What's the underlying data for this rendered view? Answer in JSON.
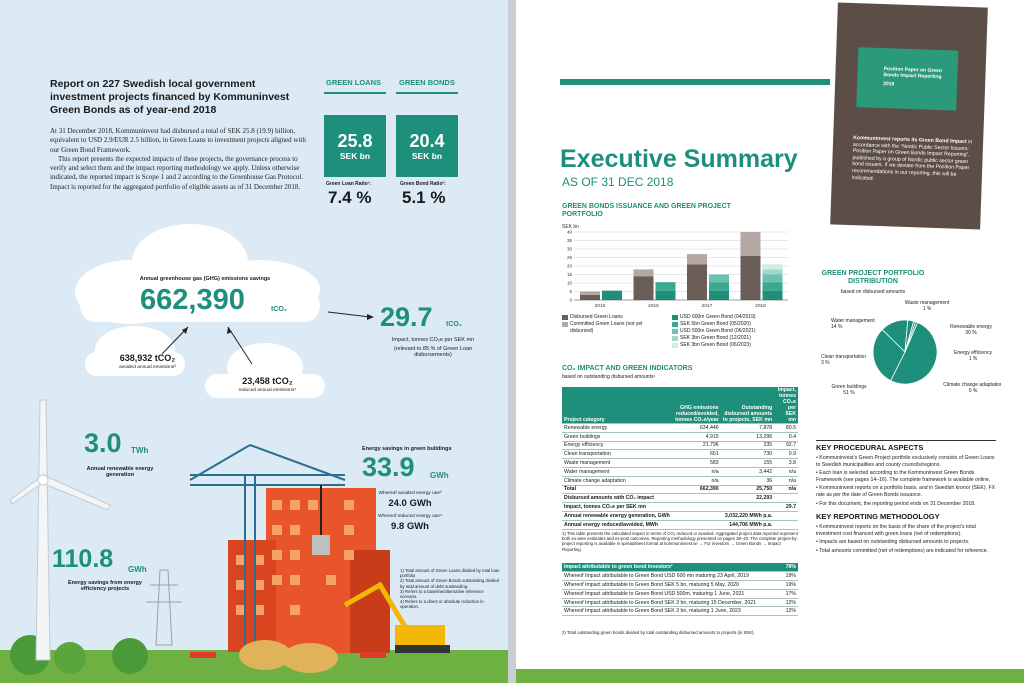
{
  "left": {
    "title": "Report on 227 Swedish local government investment projects financed by Kommuninvest Green Bonds as of year-end 2018",
    "intro_p1": "At 31 December 2018, Kommuninvest had disbursed a total of SEK 25.8 (19.9) billion, equivalent to USD 2.9/EUR 2.5 billion, in Green Loans to investment projects aligned with our Green Bond Framework.",
    "intro_p2": "This report presents the expected impacts of these projects, the governance process to verify and select them and the impact reporting methodology we apply. Unless otherwise indicated, the reported impact is Scope 1 and 2 according to the Greenhouse Gas Protocol. Impact is reported for the aggregated portfolio of eligible assets as of 31 December 2018.",
    "green_loans": {
      "heading": "GREEN LOANS",
      "value": "25.8",
      "unit": "SEK bn",
      "ratio_label": "Green Loan Ratio¹:",
      "ratio": "7.4 %"
    },
    "green_bonds": {
      "heading": "GREEN BONDS",
      "value": "20.4",
      "unit": "SEK bn",
      "ratio_label": "Green Bond Ratio²:",
      "ratio": "5.1 %"
    },
    "ghg": {
      "label": "Annual greenhouse gas (GHG) emissions savings",
      "value": "662,390",
      "unit": "tCO₂"
    },
    "avoided": {
      "value": "638,932 tCO₂",
      "label": "avoided annual emissions³"
    },
    "reduced": {
      "value": "23,458 tCO₂",
      "label": "reduced annual emissions⁴"
    },
    "impact": {
      "value": "29.7",
      "unit": "tCO₂",
      "label": "Impact, tonnes CO₂e per SEK mn",
      "note": "(relevant to 85 % of Green Loan disbursements)"
    },
    "renewable": {
      "value": "3.0",
      "unit": "TWh",
      "label": "Annual renewable energy generation"
    },
    "efficiency": {
      "value": "110.8",
      "unit": "GWh",
      "label": "Energy savings from energy efficiency projects"
    },
    "buildings": {
      "heading": "Energy savings in green buildings",
      "value": "33.9",
      "unit": "GWh",
      "avoided_label": "Whereof avoided energy use³",
      "avoided_value": "24.0 GWh",
      "reduced_label": "Whereof reduced energy use⁴",
      "reduced_value": "9.8 GWh"
    },
    "footnotes": [
      "1) Total amount of Green Loans divided by total loan portfolio",
      "2) Total amount of Green Bonds outstanding divided by total amount of debt outstanding.",
      "3) Refers to a baseline/alternative reference scenario.",
      "4) Refers to a direct or absolute reduction in operation."
    ]
  },
  "right": {
    "title": "Executive Summary",
    "subtitle": "AS OF 31 DEC 2018",
    "booklet": {
      "title": "Position Paper on Green Bonds Impact Reporting",
      "year": "2019",
      "text_bold": "Kommuninvest reports its Green Bond Impact",
      "text": " in accordance with the “Nordic Public Sector Issuers: Position Paper on Green Bonds Impact Reporting”, published by a group of Nordic public sector green bond issuers. If we deviate from the Position Paper recommendations in our reporting, this will be indicated."
    },
    "issuance_heading": "GREEN BONDS ISSUANCE AND GREEN PROJECT PORTFOLIO",
    "portfolio_heading": "GREEN PROJECT PORTFOLIO DISTRIBUTION",
    "portfolio_sub": "based on disbursed amounts",
    "co2_heading": "CO₂ IMPACT AND GREEN INDICATORS",
    "co2_sub": "based on outstanding disbursed amounts¹",
    "table_headers": [
      "Project category",
      "GHG emissions reduced/avoided, tonnes CO₂e/year",
      "Outstanding disbursed amounts to projects, SEK mn",
      "Impact, tonnes CO₂e per SEK mn"
    ],
    "table_rows": [
      [
        "Renewable energy",
        "634,446",
        "7,878",
        "80.5"
      ],
      [
        "Green buildings",
        "4,915",
        "13,296",
        "0.4"
      ],
      [
        "Energy efficiency",
        "21,796",
        "235",
        "92.7"
      ],
      [
        "Clean transportation",
        "651",
        "730",
        "0.9"
      ],
      [
        "Waste management",
        "583",
        "155",
        "3.8"
      ],
      [
        "Water management",
        "n/a",
        "3,442",
        "n/a"
      ],
      [
        "Climate change adaptation",
        "n/a",
        "36",
        "n/a"
      ],
      [
        "Total",
        "662,390",
        "25,750",
        "n/a"
      ]
    ],
    "table_summary": [
      [
        "Disbursed amounts with CO₂ impact",
        "",
        "22,293",
        ""
      ],
      [
        "Impact, tonnes CO₂e per SEK mn",
        "",
        "",
        "29.7"
      ],
      [
        "Annual renewable energy generation, GWh",
        "",
        "3,032,220 MWh p.a.",
        ""
      ],
      [
        "Annual energy reduced/avoided, MWh",
        "",
        "144,706 MWh p.a.",
        ""
      ]
    ],
    "table_note": "1) This table presents the calculated impact in terms of CO₂ reduced or avoided. Aggregated project data reported represent both ex-ante estimates and ex-post outcomes. Reporting methodology presented on pages 38–40. The complete project-by-project reporting is available in spreadsheet format at kommuninvest.se → For investors → Green Bonds → Impact Reporting.",
    "bond_header": [
      "Impact attributable to green bond investors²",
      "78%"
    ],
    "bond_rows": [
      [
        "Whereof Impact attributable to Green Bond USD 600 mn maturing 23 April, 2019",
        "19%"
      ],
      [
        "Whereof Impact attributable to Green Bond SEK 5 bn, maturing 5 May, 2020",
        "19%"
      ],
      [
        "Whereof Impact attributable to Green Bond USD 500m, maturing 1 June, 2021",
        "17%"
      ],
      [
        "Whereof Impact attributable to Green Bond SEK 3 bn, maturing 15 December, 2021",
        "12%"
      ],
      [
        "Whereof Impact attributable to Green Bond SEK 3 bn, maturing 1 June, 2023",
        "12%"
      ]
    ],
    "bond_note": "2) Total outstanding green bonds divided by total outstanding disbursed amounts to projects (in SEK).",
    "key_proc_heading": "KEY PROCEDURAL ASPECTS",
    "key_proc": [
      "• Kommuninvest’s Green Project portfolio exclusively consists of Green Loans to Swedish municipalities and county councils/regions.",
      "• Each loan is selected according to the Kommuninvest Green Bonds Framework (see pages 14–16). The complete framework is available online.",
      "• Kommuninvest reports on a portfolio basis, and in Swedish kronor (SEK). FX rate as per the date of Green Bonds issuance.",
      "• For this document, the reporting period ends on 31 December 2018."
    ],
    "key_method_heading": "KEY REPORTING METHODOLOGY",
    "key_method": [
      "• Kommuninvest reports on the basis of the share of the project’s total investment cost financed with green loans (net of redemptions).",
      "• Impacts are based on outstanding disbursed amounts to projects.",
      "• Total amounts committed (net of redemptions) are indicated for reference."
    ]
  },
  "chart_data": [
    {
      "type": "bar",
      "title": "GREEN BONDS ISSUANCE AND GREEN PROJECT PORTFOLIO",
      "ylabel": "SEK bn",
      "ylim": [
        0,
        40
      ],
      "yticks": [
        0,
        5,
        10,
        15,
        20,
        25,
        30,
        35,
        40
      ],
      "categories": [
        "2015",
        "2016",
        "2017",
        "2018"
      ],
      "portfolio": {
        "disbursed": [
          3,
          14,
          21,
          26
        ],
        "committed": [
          2,
          4,
          6,
          14
        ]
      },
      "bonds": [
        [
          {
            "name": "USD 600m Green Bond (04/2019)",
            "value": 5.5
          }
        ],
        [
          {
            "name": "USD 600m Green Bond (04/2019)",
            "value": 5.5
          },
          {
            "name": "SEK 5bn Green Bond (05/2020)",
            "value": 5
          }
        ],
        [
          {
            "name": "USD 600m Green Bond (04/2019)",
            "value": 5.5
          },
          {
            "name": "SEK 5bn Green Bond (05/2020)",
            "value": 5
          },
          {
            "name": "USD 500m Green Bond (06/2021)",
            "value": 4.5
          }
        ],
        [
          {
            "name": "USD 600m Green Bond (04/2019)",
            "value": 5.5
          },
          {
            "name": "SEK 5bn Green Bond (05/2020)",
            "value": 5
          },
          {
            "name": "USD 500m Green Bond (06/2021)",
            "value": 4.5
          },
          {
            "name": "SEK 3bn Green Bond (12/2021)",
            "value": 3
          },
          {
            "name": "SEK 3bn Green Bond (06/2023)",
            "value": 3
          }
        ]
      ],
      "legend": [
        {
          "name": "Disbursed Green Loans",
          "color": "#6b5d58"
        },
        {
          "name": "Committed Green Loans (not yet disbursed)",
          "color": "#b3a8a4"
        },
        {
          "name": "USD 600m Green Bond (04/2019)",
          "color": "#1d8f7a"
        },
        {
          "name": "SEK 5bn Green Bond (05/2020)",
          "color": "#3ba891"
        },
        {
          "name": "USD 500m Green Bond (06/2021)",
          "color": "#6cc2ae"
        },
        {
          "name": "SEK 3bn Green Bond (12/2021)",
          "color": "#9dd8c9"
        },
        {
          "name": "SEK 3bn Green Bond (06/2023)",
          "color": "#cdeee5"
        }
      ]
    },
    {
      "type": "pie",
      "title": "GREEN PROJECT PORTFOLIO DISTRIBUTION",
      "slices": [
        {
          "label": "Green buildings",
          "value": 51
        },
        {
          "label": "Renewable energy",
          "value": 30
        },
        {
          "label": "Water management",
          "value": 14
        },
        {
          "label": "Clean transportation",
          "value": 3
        },
        {
          "label": "Energy efficiency",
          "value": 1
        },
        {
          "label": "Waste management",
          "value": 1
        },
        {
          "label": "Climate change adaptation",
          "value": 0
        }
      ],
      "labels_display": [
        "Green buildings 51 %",
        "Renewable energy 30 %",
        "Water management 14 %",
        "Clean transportation 3 %",
        "Energy efficiency 1 %",
        "Waste management 1 %",
        "Climate change adaptation 0 %"
      ]
    }
  ]
}
